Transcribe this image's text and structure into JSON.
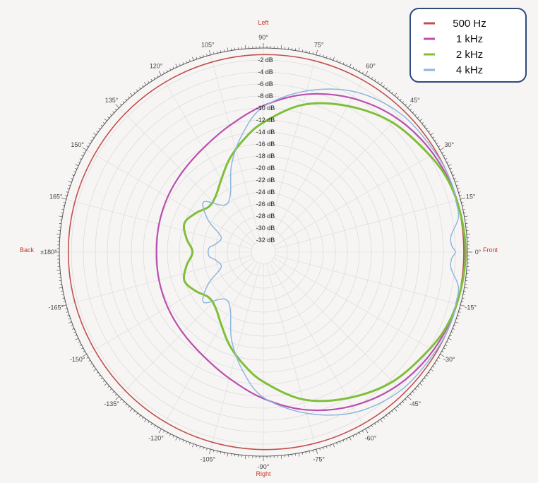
{
  "chart_data": {
    "type": "polar",
    "r_unit": "dB",
    "r_range": [
      -34,
      0
    ],
    "r_ticks": [
      "-2 dB",
      "-4 dB",
      "-6 dB",
      "-8 dB",
      "-10 dB",
      "-12 dB",
      "-14 dB",
      "-16 dB",
      "-18 dB",
      "-20 dB",
      "-22 dB",
      "-24 dB",
      "-26 dB",
      "-28 dB",
      "-30 dB",
      "-32 dB"
    ],
    "angle_ticks": [
      {
        "deg": 90,
        "label": "90°"
      },
      {
        "deg": 105,
        "label": "105°"
      },
      {
        "deg": 120,
        "label": "120°"
      },
      {
        "deg": 135,
        "label": "135°"
      },
      {
        "deg": 150,
        "label": "150°"
      },
      {
        "deg": 165,
        "label": "165°"
      },
      {
        "deg": 180,
        "label": "±180°"
      },
      {
        "deg": -165,
        "label": "-165°"
      },
      {
        "deg": -150,
        "label": "-150°"
      },
      {
        "deg": -135,
        "label": "-135°"
      },
      {
        "deg": -120,
        "label": "-120°"
      },
      {
        "deg": -105,
        "label": "-105°"
      },
      {
        "deg": -90,
        "label": "-90°"
      },
      {
        "deg": -75,
        "label": "-75°"
      },
      {
        "deg": -60,
        "label": "-60°"
      },
      {
        "deg": -45,
        "label": "-45°"
      },
      {
        "deg": -30,
        "label": "-30°"
      },
      {
        "deg": -15,
        "label": "-15°"
      },
      {
        "deg": 0,
        "label": "0°"
      },
      {
        "deg": 15,
        "label": "15°"
      },
      {
        "deg": 30,
        "label": "30°"
      },
      {
        "deg": 45,
        "label": "45°"
      },
      {
        "deg": 60,
        "label": "60°"
      },
      {
        "deg": 75,
        "label": "75°"
      }
    ],
    "direction_labels": {
      "left": "Left",
      "right": "Right",
      "front": "Front",
      "back": "Back"
    },
    "legend_position": "top-right",
    "grid": true,
    "series": [
      {
        "name": "500 Hz",
        "color": "#c0504d",
        "width": 1.6,
        "angles": [
          0,
          15,
          30,
          45,
          60,
          75,
          90,
          105,
          120,
          135,
          150,
          165,
          180
        ],
        "values": [
          -0.6,
          -0.6,
          -0.7,
          -0.8,
          -0.9,
          -1.0,
          -1.1,
          -1.2,
          -1.3,
          -1.4,
          -1.5,
          -1.5,
          -1.5
        ]
      },
      {
        "name": "1 kHz",
        "color": "#b94fb0",
        "width": 2.2,
        "angles": [
          0,
          15,
          30,
          45,
          60,
          75,
          90,
          105,
          120,
          135,
          150,
          165,
          180
        ],
        "values": [
          -0.4,
          -0.6,
          -1.3,
          -2.5,
          -4.4,
          -6.8,
          -9.6,
          -12.2,
          -14.0,
          -15.0,
          -15.6,
          -16.0,
          -16.2
        ]
      },
      {
        "name": "2 kHz",
        "color": "#7fbf3a",
        "width": 3,
        "angles": [
          0,
          10,
          20,
          30,
          45,
          60,
          75,
          90,
          100,
          110,
          120,
          130,
          140,
          150,
          160,
          170,
          180
        ],
        "values": [
          -0.3,
          -0.5,
          -0.9,
          -1.9,
          -3.5,
          -5.9,
          -8.6,
          -12.4,
          -15.0,
          -17.5,
          -20.0,
          -21.7,
          -22.2,
          -21.0,
          -20.0,
          -21.0,
          -22.2
        ]
      },
      {
        "name": "4 kHz",
        "color": "#8fb6de",
        "width": 1.5,
        "angles": [
          0,
          2,
          5,
          10,
          15,
          20,
          30,
          45,
          60,
          75,
          90,
          100,
          110,
          120,
          130,
          140,
          150,
          160,
          170,
          175,
          180
        ],
        "values": [
          -2.0,
          -2.6,
          -2.6,
          -1.0,
          -0.8,
          -0.6,
          -0.9,
          -1.5,
          -3.2,
          -6.2,
          -9.8,
          -14.0,
          -18.5,
          -23.0,
          -23.8,
          -21.0,
          -23.4,
          -26.5,
          -26.0,
          -25.0,
          -24.8
        ]
      }
    ]
  }
}
